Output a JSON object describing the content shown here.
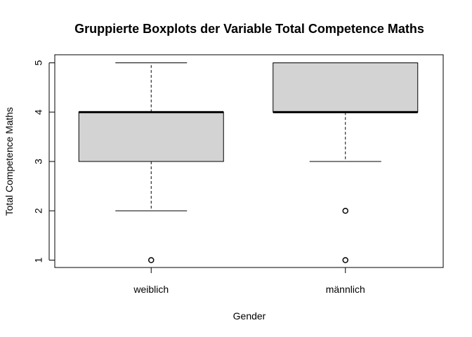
{
  "chart_data": {
    "type": "boxplot",
    "title": "Gruppierte Boxplots der Variable Total Competence Maths",
    "xlabel": "Gender",
    "ylabel": "Total Competence Maths",
    "ylim": [
      1,
      5
    ],
    "yticks": [
      1,
      2,
      3,
      4,
      5
    ],
    "categories": [
      "weiblich",
      "männlich"
    ],
    "series": [
      {
        "category": "weiblich",
        "whisker_low": 2,
        "q1": 3,
        "median": 4,
        "q3": 4,
        "whisker_high": 5,
        "outliers": [
          1
        ]
      },
      {
        "category": "männlich",
        "whisker_low": 3,
        "q1": 4,
        "median": 4,
        "q3": 5,
        "whisker_high": 5,
        "outliers": [
          2,
          1
        ]
      }
    ],
    "box_color": "#d3d3d3"
  }
}
